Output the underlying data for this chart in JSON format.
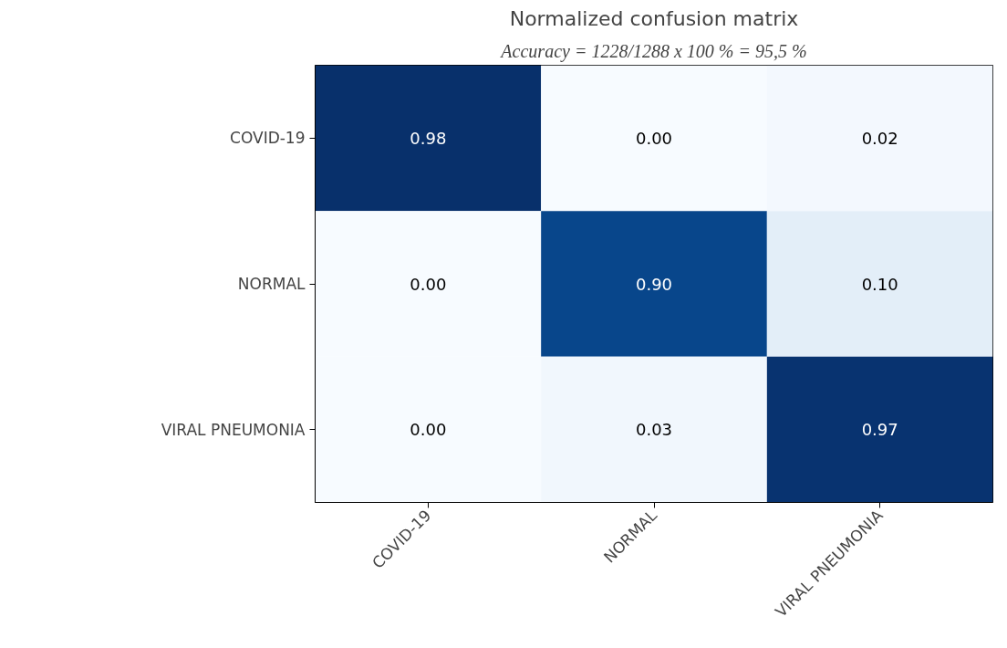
{
  "chart_data": {
    "type": "heatmap",
    "title": "Normalized confusion matrix",
    "annotations": [
      "Accuracy = 1228/1288 x 100 % = 95,5 %"
    ],
    "categories": [
      "COVID-19",
      "NORMAL",
      "VIRAL PNEUMONIA"
    ],
    "y_categories": [
      "COVID-19",
      "NORMAL",
      "VIRAL PNEUMONIA"
    ],
    "cells": [
      [
        0.98,
        0.0,
        0.02
      ],
      [
        0.0,
        0.9,
        0.1
      ],
      [
        0.0,
        0.03,
        0.97
      ]
    ],
    "cell_labels": [
      [
        "0.98",
        "0.00",
        "0.02"
      ],
      [
        "0.00",
        "0.90",
        "0.10"
      ],
      [
        "0.00",
        "0.03",
        "0.97"
      ]
    ],
    "grid": false
  }
}
